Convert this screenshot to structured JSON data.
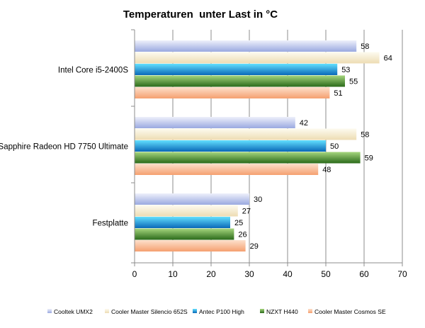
{
  "chart_data": {
    "type": "bar",
    "orientation": "horizontal",
    "title": "Temperaturen  unter Last in °C",
    "categories": [
      "Intel Core i5-2400S",
      "Sapphire Radeon HD 7750 Ultimate",
      "Festplatte"
    ],
    "series": [
      {
        "name": "Cooltek UMX2",
        "values": [
          58,
          42,
          30
        ],
        "colors": [
          "#eef0fb",
          "#9aa9e0"
        ]
      },
      {
        "name": "Cooler Master Silencio 652S",
        "values": [
          64,
          58,
          27
        ],
        "colors": [
          "#fdfbf0",
          "#eddcb3"
        ]
      },
      {
        "name": "Antec P100 High",
        "values": [
          53,
          50,
          25
        ],
        "colors": [
          "#63e0ff",
          "#0a68b8"
        ]
      },
      {
        "name": "NZXT H440",
        "values": [
          55,
          59,
          26
        ],
        "colors": [
          "#a6d67e",
          "#2a6a1a"
        ]
      },
      {
        "name": "Cooler Master Cosmos SE",
        "values": [
          51,
          48,
          29
        ],
        "colors": [
          "#fde0cc",
          "#f5a070"
        ]
      }
    ],
    "xlim": [
      0,
      70
    ],
    "xticks": [
      "0",
      "10",
      "20",
      "30",
      "40",
      "50",
      "60",
      "70"
    ],
    "grid": "vertical",
    "legend_position": "bottom"
  }
}
